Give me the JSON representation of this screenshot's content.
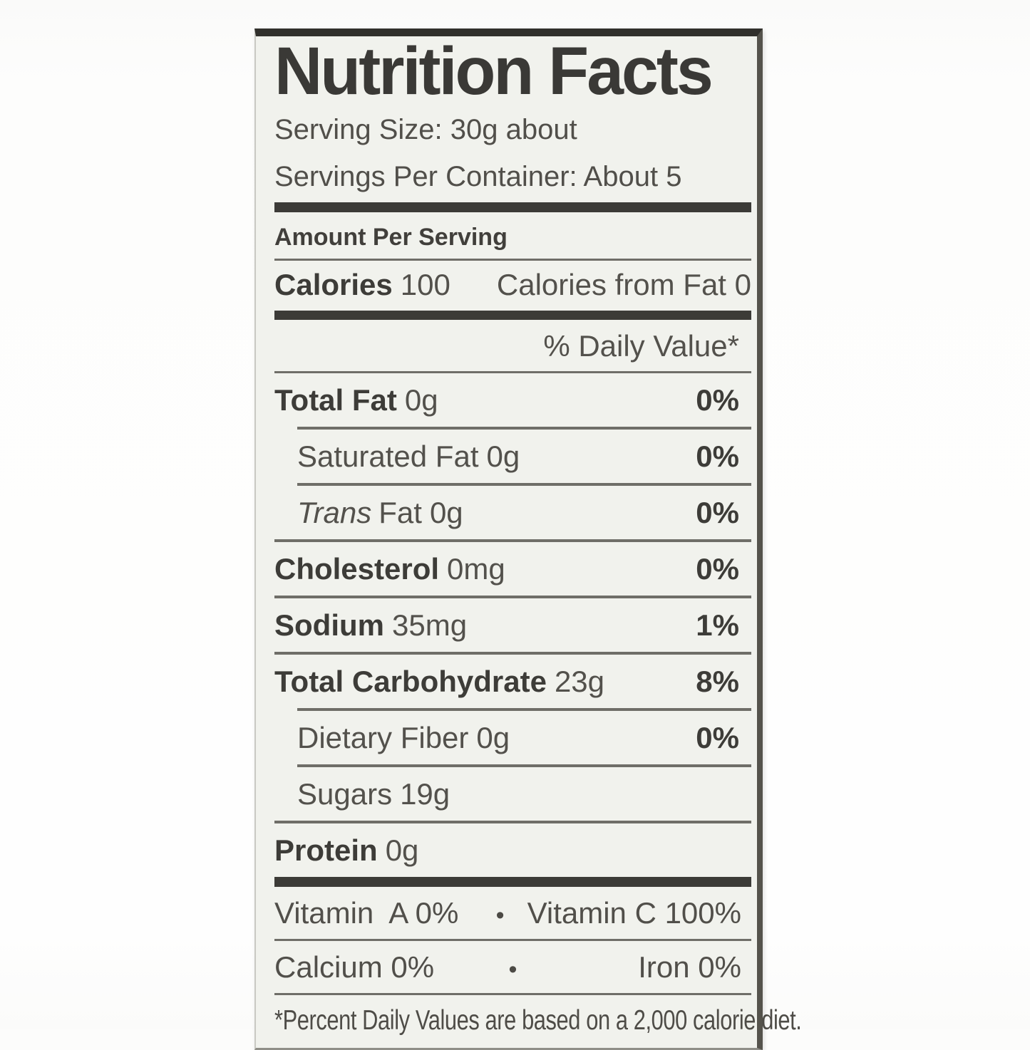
{
  "colors": {
    "page_bg": "#fcfcfb",
    "label_bg": "#f1f2ed",
    "text": "#53514c",
    "bold_text": "#3d3c38",
    "line": "#6f6e68",
    "thick_bar": "#3c3b37",
    "package_edge": "#55534c"
  },
  "label": {
    "title": "Nutrition Facts",
    "serving_size": "Serving Size: 30g about",
    "servings_per_container": "Servings Per Container: About 5",
    "amount_per_serving": "Amount Per Serving",
    "calories_label": "Calories",
    "calories_value": "100",
    "calories_from_fat": "Calories from Fat 0",
    "daily_value_header": "% Daily Value*",
    "nutrients": [
      {
        "name": "Total Fat",
        "amount": "0g",
        "dv": "0%"
      },
      {
        "name": "Saturated Fat",
        "amount": "0g",
        "dv": "0%"
      },
      {
        "name_italic": "Trans",
        "name": "Fat",
        "amount": "0g",
        "dv": "0%"
      },
      {
        "name": "Cholesterol",
        "amount": "0mg",
        "dv": "0%"
      },
      {
        "name": "Sodium",
        "amount": "35mg",
        "dv": "1%"
      },
      {
        "name": "Total Carbohydrate",
        "amount": "23g",
        "dv": "8%"
      },
      {
        "name": "Dietary Fiber",
        "amount": "0g",
        "dv": "0%"
      },
      {
        "name": "Sugars",
        "amount": "19g",
        "dv": ""
      },
      {
        "name": "Protein",
        "amount": "0g",
        "dv": ""
      }
    ],
    "micronutrients": [
      {
        "left": "Vitamin  A 0%",
        "separator": "•",
        "right": "Vitamin C 100%"
      },
      {
        "left": "Calcium 0%",
        "separator": "•",
        "right": "Iron 0%"
      }
    ],
    "footnote": "*Percent Daily Values are based on a 2,000 calorie diet."
  }
}
